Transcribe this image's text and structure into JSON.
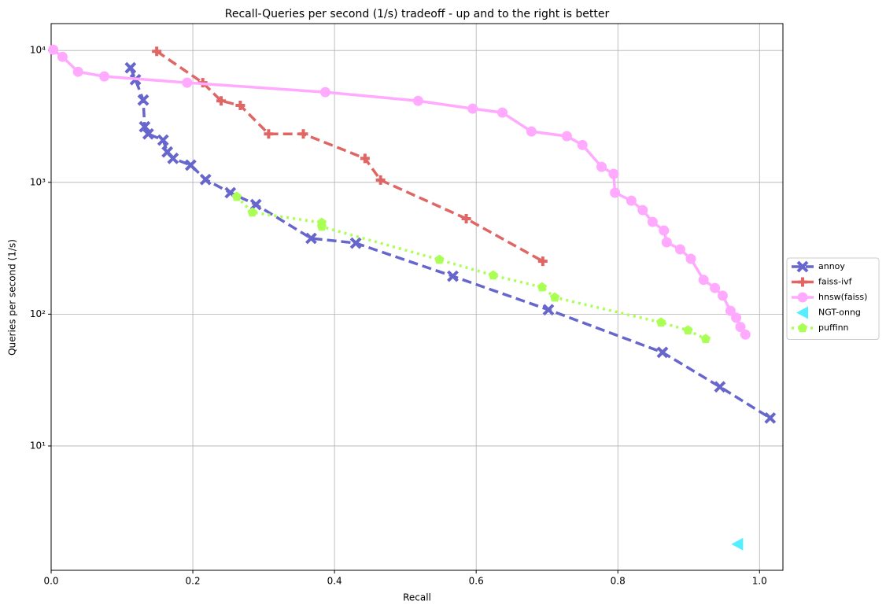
{
  "chart_data": {
    "type": "line",
    "title": "Recall-Queries per second (1/s) tradeoff - up and to the right is better",
    "x_label": "Recall",
    "y_label": "Queries per second (1/s)",
    "xlim": [
      0,
      1.033
    ],
    "ylim": [
      1.14,
      16000
    ],
    "yscale": "log",
    "grid": true,
    "legend": "right",
    "xticks": [
      {
        "value": 0,
        "label": "0.0"
      },
      0.2,
      0.4,
      0.6,
      0.8,
      {
        "value": 1,
        "label": "1.0"
      }
    ],
    "yticks": [
      {
        "value": 10,
        "label": "10¹"
      },
      {
        "value": 100,
        "label": "10²"
      },
      {
        "value": 1000,
        "label": "10³"
      },
      {
        "value": 10000,
        "label": "10⁴"
      }
    ],
    "series": [
      {
        "name": "annoy",
        "color": "#6666cc",
        "marker": "x",
        "linestyle": "dashed",
        "x": [
          0.112,
          0.119,
          0.13,
          0.132,
          0.137,
          0.158,
          0.164,
          0.172,
          0.197,
          0.218,
          0.253,
          0.289,
          0.367,
          0.43,
          0.567,
          0.702,
          0.863,
          0.944,
          1.015
        ],
        "values": [
          7390,
          6010,
          4210,
          2640,
          2330,
          2090,
          1700,
          1520,
          1350,
          1050,
          834,
          678,
          376,
          346,
          194,
          108,
          51.3,
          28.1,
          16.3
        ]
      },
      {
        "name": "faiss-ivf",
        "color": "#e06666",
        "marker": "plus",
        "linestyle": "dashed",
        "x": [
          0.149,
          0.214,
          0.24,
          0.267,
          0.307,
          0.356,
          0.443,
          0.465,
          0.586,
          0.694
        ],
        "values": [
          9860,
          5700,
          4150,
          3830,
          2330,
          2330,
          1520,
          1040,
          530,
          252
        ]
      },
      {
        "name": "hnsw(faiss)",
        "color": "#ffaaff",
        "marker": "circle",
        "linestyle": "solid",
        "x": [
          0.003,
          0.016,
          0.038,
          0.075,
          0.192,
          0.387,
          0.518,
          0.595,
          0.637,
          0.678,
          0.728,
          0.75,
          0.777,
          0.794,
          0.796,
          0.819,
          0.835,
          0.849,
          0.865,
          0.869,
          0.888,
          0.903,
          0.921,
          0.937,
          0.948,
          0.959,
          0.967,
          0.973,
          0.98
        ],
        "values": [
          10140,
          8950,
          6900,
          6360,
          5700,
          4830,
          4150,
          3620,
          3380,
          2430,
          2240,
          1920,
          1310,
          1160,
          834,
          726,
          615,
          501,
          431,
          351,
          310,
          263,
          182,
          158,
          138,
          106,
          94,
          80,
          70
        ]
      },
      {
        "name": "NGT-onng",
        "color": "#55eeff",
        "marker": "triangle-left",
        "linestyle": "none",
        "x": [
          0.969
        ],
        "values": [
          1.8
        ]
      },
      {
        "name": "puffinn",
        "color": "#aaff55",
        "marker": "pentagon",
        "linestyle": "dotted",
        "x": [
          0.262,
          0.284,
          0.382,
          0.382,
          0.548,
          0.624,
          0.693,
          0.711,
          0.861,
          0.899,
          0.924
        ],
        "values": [
          778,
          592,
          494,
          461,
          259,
          197,
          160,
          134,
          86.5,
          75.4,
          64.9
        ]
      }
    ]
  }
}
